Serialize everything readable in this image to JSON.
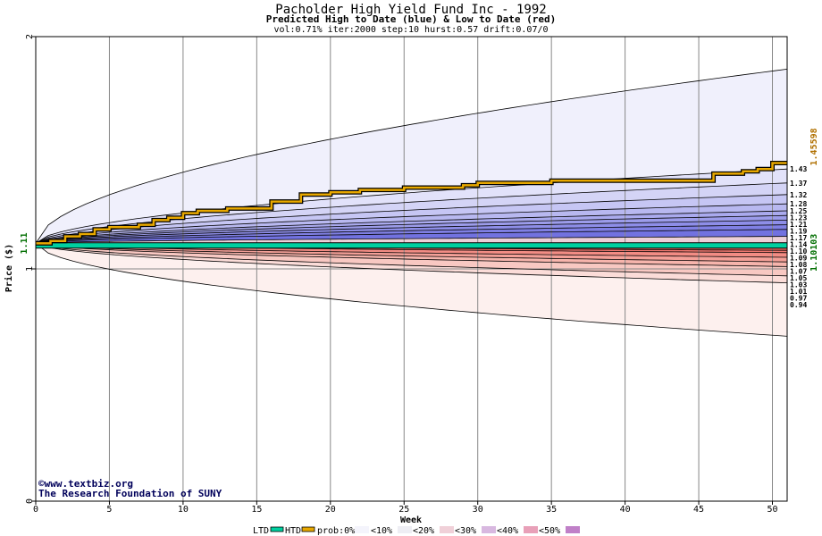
{
  "chart_data": {
    "type": "area",
    "title": "Pacholder High Yield Fund Inc - 1992",
    "subtitle": "Predicted High to Date (blue) &  Low to Date (red)",
    "params": "vol:0.71% iter:2000 step:10 hurst:0.57 drift:0.07/0",
    "xlabel": "Week",
    "ylabel": "Price ($)",
    "xlim": [
      0,
      51
    ],
    "ylim": [
      0,
      2
    ],
    "x_ticks": [
      "0",
      "5",
      "10",
      "15",
      "20",
      "25",
      "30",
      "35",
      "40",
      "45",
      "50"
    ],
    "y_ticks": [
      "0",
      "1",
      "2"
    ],
    "grid": true,
    "start_price": 1.11,
    "start_price_label": "1.11",
    "htd_value_label": "1.45598",
    "ltd_value_label": "1.10103",
    "high_percentile_labels": [
      "1.43",
      "1.37",
      "1.32",
      "1.28",
      "1.25",
      "1.23",
      "1.21",
      "1.19",
      "1.17",
      "1.14"
    ],
    "low_percentile_labels": [
      "1.10",
      "1.09",
      "1.08",
      "1.07",
      "1.05",
      "1.03",
      "1.01",
      "0.97",
      "0.94"
    ],
    "high_band_ends": [
      1.86,
      1.43,
      1.37,
      1.32,
      1.28,
      1.25,
      1.23,
      1.21,
      1.19,
      1.17,
      1.14
    ],
    "low_band_ends": [
      0.71,
      0.94,
      0.97,
      1.01,
      1.03,
      1.05,
      1.07,
      1.08,
      1.09,
      1.1
    ],
    "htd_path": {
      "x": [
        0,
        1,
        2,
        3,
        4,
        5,
        6,
        7,
        8,
        9,
        10,
        11,
        12,
        13,
        14,
        15,
        16,
        17,
        18,
        19,
        20,
        21,
        22,
        23,
        24,
        25,
        26,
        27,
        28,
        29,
        30,
        31,
        32,
        33,
        34,
        35,
        36,
        37,
        38,
        39,
        40,
        41,
        42,
        43,
        44,
        45,
        46,
        47,
        48,
        49,
        50,
        51
      ],
      "y": [
        1.11,
        1.12,
        1.14,
        1.15,
        1.17,
        1.18,
        1.18,
        1.19,
        1.21,
        1.22,
        1.24,
        1.25,
        1.25,
        1.26,
        1.26,
        1.26,
        1.29,
        1.29,
        1.32,
        1.32,
        1.33,
        1.33,
        1.34,
        1.34,
        1.34,
        1.35,
        1.35,
        1.35,
        1.35,
        1.36,
        1.37,
        1.37,
        1.37,
        1.37,
        1.37,
        1.38,
        1.38,
        1.38,
        1.38,
        1.38,
        1.38,
        1.38,
        1.38,
        1.38,
        1.38,
        1.38,
        1.41,
        1.41,
        1.42,
        1.43,
        1.456,
        1.456
      ]
    },
    "ltd_value": 1.101
  },
  "credit": {
    "site": "©www.textbiz.org",
    "org": "The Research Foundation of SUNY"
  },
  "legend": {
    "ltd_label": "LTD",
    "htd_label": "HTD",
    "prob_label": "prob:0%",
    "bins": [
      "<10%",
      "<20%",
      "<30%",
      "<40%",
      "<50%"
    ]
  },
  "colors": {
    "htd": "#e8a800",
    "ltd": "#00d0a0",
    "green_label": "#006e00",
    "orange_label": "#b07000",
    "blue_bands": [
      "#f0f0fc",
      "#e2e2fa",
      "#d4d4f6",
      "#c6c6f4",
      "#b8b8f0",
      "#aaaaee",
      "#9c9cea",
      "#8e8ee8",
      "#8080e4",
      "#7272e0"
    ],
    "red_bands": [
      "#fdf0ee",
      "#fbdcd8",
      "#f8c8c2",
      "#f6b4ac",
      "#f4a098",
      "#f28c84",
      "#f07870",
      "#ee665e",
      "#ec5a50"
    ],
    "legend_swatches": [
      "#f4f4fc",
      "#eeeef4",
      "#f0d0d8",
      "#d8b8e0",
      "#e8a0b8",
      "#c080c8"
    ]
  }
}
